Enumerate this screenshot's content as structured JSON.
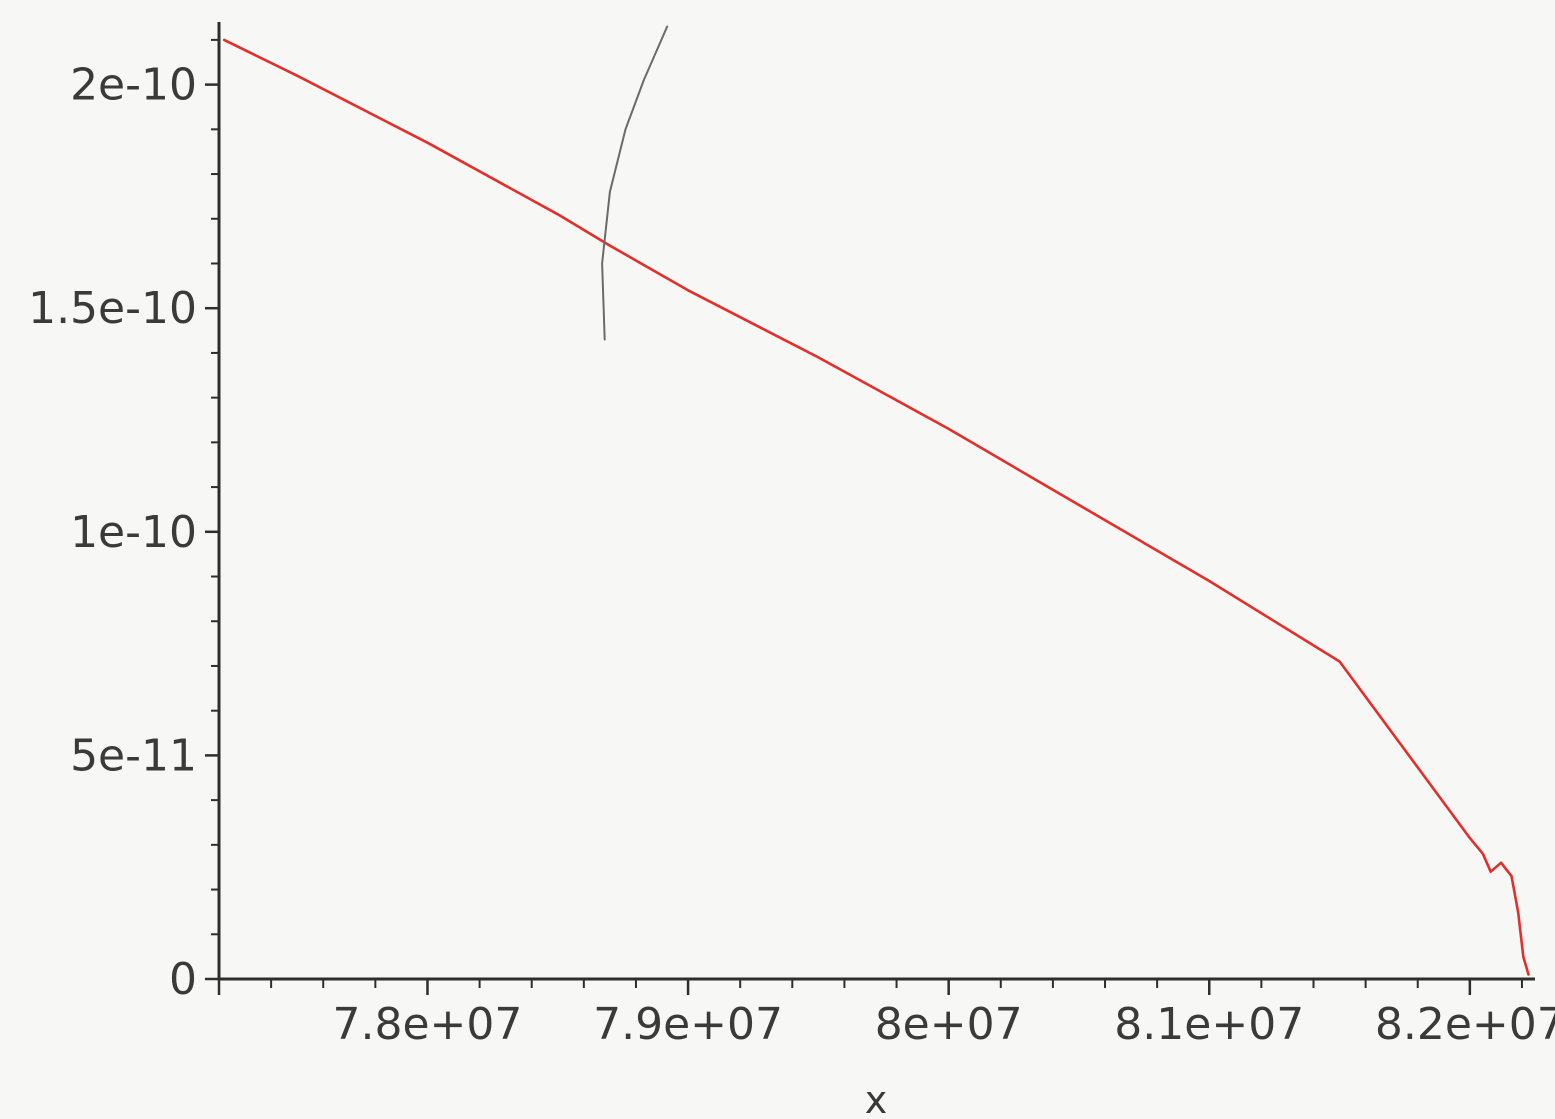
{
  "chart_data": {
    "type": "line",
    "title": "",
    "xlabel": "x",
    "ylabel": "",
    "xlim": [
      77200000,
      82250000
    ],
    "ylim": [
      0,
      2.15e-10
    ],
    "grid": false,
    "x_ticks": [
      {
        "value": 78000000,
        "label": "7.8e+07"
      },
      {
        "value": 79000000,
        "label": "7.9e+07"
      },
      {
        "value": 80000000,
        "label": "8e+07"
      },
      {
        "value": 81000000,
        "label": "8.1e+07"
      },
      {
        "value": 82000000,
        "label": "8.2e+07"
      }
    ],
    "y_ticks": [
      {
        "value": 0,
        "label": "0"
      },
      {
        "value": 5e-11,
        "label": "5e-11"
      },
      {
        "value": 1e-10,
        "label": "1e-10"
      },
      {
        "value": 1.5e-10,
        "label": "1.5e-10"
      },
      {
        "value": 2e-10,
        "label": "2e-10"
      }
    ],
    "series": [
      {
        "color": "#e0302c",
        "points": [
          [
            77220000,
            2.1e-10
          ],
          [
            77500000,
            2.02e-10
          ],
          [
            78000000,
            1.87e-10
          ],
          [
            78500000,
            1.71e-10
          ],
          [
            78700000,
            1.64e-10
          ],
          [
            79000000,
            1.54e-10
          ],
          [
            79500000,
            1.39e-10
          ],
          [
            80000000,
            1.23e-10
          ],
          [
            80500000,
            1.06e-10
          ],
          [
            81000000,
            8.9e-11
          ],
          [
            81500000,
            7.1e-11
          ],
          [
            82000000,
            3.15e-11
          ],
          [
            82050000,
            2.8e-11
          ],
          [
            82080000,
            2.4e-11
          ],
          [
            82120000,
            2.6e-11
          ],
          [
            82140000,
            2.45e-11
          ],
          [
            82160000,
            2.3e-11
          ],
          [
            82185000,
            1.5e-11
          ],
          [
            82205000,
            5e-12
          ],
          [
            82225000,
            1e-12
          ]
        ]
      },
      {
        "color": "#6a6a6a",
        "points": [
          [
            78680000,
            1.43e-10
          ],
          [
            78670000,
            1.6e-10
          ],
          [
            78700000,
            1.76e-10
          ],
          [
            78760000,
            1.9e-10
          ],
          [
            78830000,
            2.01e-10
          ],
          [
            78920000,
            2.13e-10
          ]
        ]
      }
    ]
  }
}
